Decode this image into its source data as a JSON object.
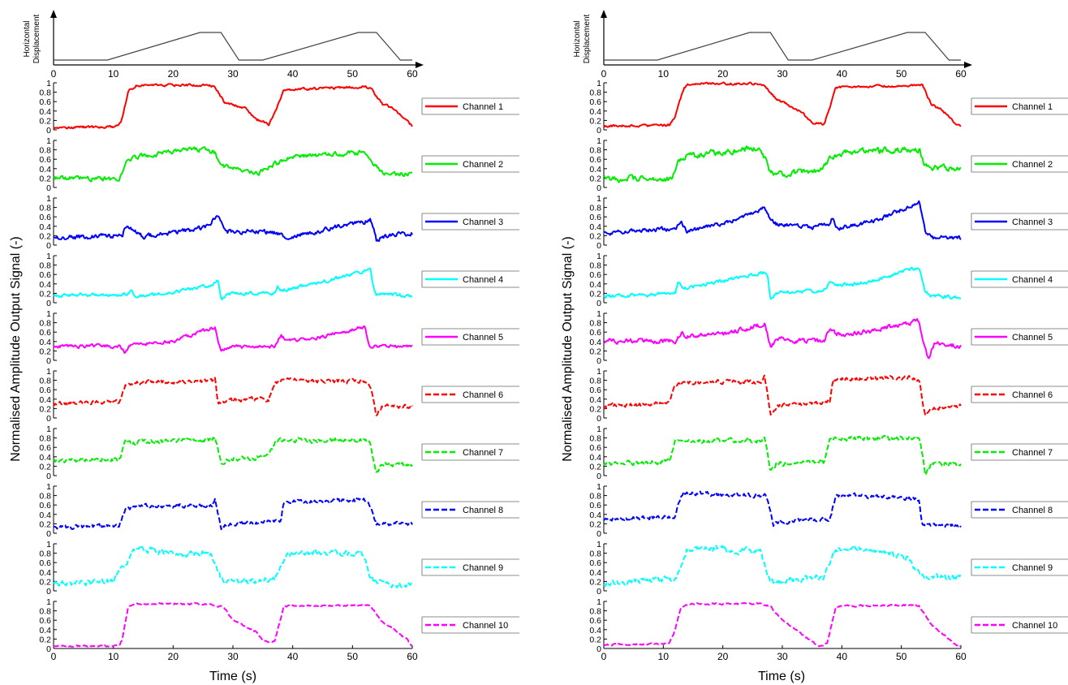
{
  "chart_data": {
    "type": "line",
    "ylabel": "Normalised Amplitude Output Signal (-)",
    "xlabel": "Time (s)",
    "xlim": [
      0,
      60
    ],
    "ylim": [
      0,
      1
    ],
    "xticks": [
      "0",
      "10",
      "20",
      "30",
      "40",
      "50",
      "60"
    ],
    "yticks": [
      "0",
      "0.2",
      "0.4",
      "0.6",
      "0.8",
      "1"
    ],
    "displacement": {
      "ylabel_line1": "Horizontal",
      "ylabel_line2": "Displacement",
      "t": [
        0,
        9,
        24.5,
        28,
        31,
        35,
        51,
        54,
        58,
        60
      ],
      "y": [
        0,
        0,
        1,
        1,
        0,
        0,
        1,
        1,
        0,
        0
      ]
    },
    "panels": [
      {
        "series": [
          {
            "name": "Channel 1",
            "color": "#ff0000",
            "dash": "solid",
            "noise": 0.02,
            "t": [
              0,
              10,
              11.3,
              12.5,
              14,
              25,
              27,
              28.5,
              32,
              34,
              36,
              37,
              38.5,
              52,
              53,
              55,
              57,
              59,
              60
            ],
            "y": [
              0.05,
              0.06,
              0.15,
              0.82,
              0.95,
              0.95,
              0.92,
              0.6,
              0.45,
              0.22,
              0.12,
              0.35,
              0.85,
              0.92,
              0.9,
              0.55,
              0.45,
              0.2,
              0.08
            ]
          },
          {
            "name": "Channel 2",
            "color": "#00ee00",
            "dash": "solid",
            "noise": 0.04,
            "t": [
              0,
              11,
              12,
              14,
              20,
              24,
              27,
              28,
              32,
              34,
              37,
              40,
              46,
              50,
              52,
              53,
              55,
              60
            ],
            "y": [
              0.2,
              0.18,
              0.55,
              0.65,
              0.75,
              0.82,
              0.75,
              0.45,
              0.35,
              0.3,
              0.5,
              0.65,
              0.7,
              0.72,
              0.75,
              0.6,
              0.3,
              0.3
            ]
          },
          {
            "name": "Channel 3",
            "color": "#0000ff",
            "dash": "solid",
            "noise": 0.04,
            "t": [
              0,
              10,
              11.5,
              12,
              15,
              25,
              27.5,
              29,
              35,
              38,
              38.5,
              40,
              52,
              53,
              54,
              55,
              60
            ],
            "y": [
              0.15,
              0.2,
              0.22,
              0.4,
              0.18,
              0.35,
              0.6,
              0.3,
              0.28,
              0.25,
              0.15,
              0.2,
              0.5,
              0.58,
              0.1,
              0.2,
              0.25
            ]
          },
          {
            "name": "Channel 4",
            "color": "#00ffff",
            "dash": "solid",
            "noise": 0.03,
            "t": [
              0,
              12,
              13,
              14,
              26,
              27.5,
              28,
              29,
              37,
              37.5,
              38,
              45,
              53,
              53.5,
              54,
              60
            ],
            "y": [
              0.15,
              0.18,
              0.25,
              0.12,
              0.35,
              0.5,
              0.05,
              0.2,
              0.2,
              0.35,
              0.25,
              0.45,
              0.7,
              0.3,
              0.18,
              0.15
            ]
          },
          {
            "name": "Channel 5",
            "color": "#ff00ff",
            "dash": "solid",
            "noise": 0.03,
            "t": [
              0,
              11,
              12,
              13,
              20,
              27,
              28,
              29,
              37,
              38,
              39,
              45,
              52,
              53,
              54,
              60
            ],
            "y": [
              0.3,
              0.3,
              0.15,
              0.35,
              0.4,
              0.7,
              0.2,
              0.28,
              0.3,
              0.55,
              0.4,
              0.5,
              0.72,
              0.25,
              0.3,
              0.3
            ]
          }
        ]
      },
      {
        "series": [
          {
            "name": "Channel 6",
            "color": "#ff0000",
            "dash": "dashed",
            "noise": 0.035,
            "t": [
              0,
              11,
              12,
              14,
              26.5,
              27,
              27.5,
              28.5,
              32,
              36,
              37,
              38,
              52,
              53,
              54,
              55,
              60
            ],
            "y": [
              0.3,
              0.35,
              0.68,
              0.75,
              0.78,
              0.85,
              0.3,
              0.35,
              0.4,
              0.4,
              0.75,
              0.8,
              0.78,
              0.7,
              0.05,
              0.25,
              0.25
            ]
          },
          {
            "name": "Channel 7",
            "color": "#00ee00",
            "dash": "dashed",
            "noise": 0.04,
            "t": [
              0,
              11,
              12,
              14,
              26.5,
              27,
              28,
              29,
              36,
              37,
              38,
              52,
              53,
              54,
              55,
              60
            ],
            "y": [
              0.3,
              0.35,
              0.7,
              0.72,
              0.75,
              0.85,
              0.25,
              0.35,
              0.4,
              0.7,
              0.75,
              0.75,
              0.7,
              0.05,
              0.25,
              0.22
            ]
          },
          {
            "name": "Channel 8",
            "color": "#0000ff",
            "dash": "dashed",
            "noise": 0.035,
            "t": [
              0,
              11,
              12,
              14,
              26.5,
              27,
              28,
              29,
              38,
              38.5,
              40,
              52,
              53,
              54,
              60
            ],
            "y": [
              0.12,
              0.15,
              0.5,
              0.58,
              0.6,
              0.7,
              0.1,
              0.2,
              0.25,
              0.68,
              0.68,
              0.7,
              0.55,
              0.2,
              0.2
            ]
          },
          {
            "name": "Channel 9",
            "color": "#00ffff",
            "dash": "dashed",
            "noise": 0.05,
            "t": [
              0,
              10,
              11,
              12,
              13,
              14,
              20,
              26.5,
              27,
              28,
              30,
              37,
              38,
              39,
              50,
              52,
              53,
              55,
              60
            ],
            "y": [
              0.15,
              0.2,
              0.4,
              0.5,
              0.82,
              0.9,
              0.8,
              0.8,
              0.55,
              0.25,
              0.2,
              0.25,
              0.55,
              0.8,
              0.82,
              0.75,
              0.3,
              0.15,
              0.12
            ]
          },
          {
            "name": "Channel 10",
            "color": "#ff00ff",
            "dash": "dashed",
            "noise": 0.015,
            "t": [
              0,
              11,
              11.5,
              12.5,
              14,
              26,
              28.5,
              30,
              34,
              35,
              37,
              38.5,
              52,
              53,
              55,
              57,
              59,
              60
            ],
            "y": [
              0.05,
              0.05,
              0.2,
              0.9,
              0.95,
              0.95,
              0.88,
              0.6,
              0.35,
              0.15,
              0.15,
              0.9,
              0.92,
              0.9,
              0.55,
              0.4,
              0.2,
              0.05
            ]
          }
        ]
      },
      {
        "series": [
          {
            "name": "Channel 1",
            "color": "#ff0000",
            "dash": "solid",
            "noise": 0.02,
            "t": [
              0,
              11,
              12,
              13.5,
              14.5,
              26,
              27,
              29,
              33,
              35,
              37,
              38,
              39,
              53,
              53.5,
              55,
              57,
              59,
              60
            ],
            "y": [
              0.08,
              0.1,
              0.3,
              0.9,
              0.98,
              0.98,
              0.95,
              0.65,
              0.4,
              0.15,
              0.12,
              0.5,
              0.9,
              0.95,
              0.95,
              0.55,
              0.4,
              0.15,
              0.08
            ]
          },
          {
            "name": "Channel 2",
            "color": "#00ee00",
            "dash": "solid",
            "noise": 0.05,
            "t": [
              0,
              11.5,
              12.5,
              14,
              20,
              26,
              27,
              28,
              32,
              36,
              38,
              40,
              50,
              53,
              54,
              56,
              60
            ],
            "y": [
              0.18,
              0.18,
              0.55,
              0.65,
              0.75,
              0.85,
              0.65,
              0.3,
              0.3,
              0.35,
              0.62,
              0.75,
              0.8,
              0.82,
              0.45,
              0.4,
              0.4
            ]
          },
          {
            "name": "Channel 3",
            "color": "#0000ff",
            "dash": "solid",
            "noise": 0.035,
            "t": [
              0,
              12,
              13,
              14,
              20,
              27,
              28,
              29,
              35,
              38,
              38.5,
              39,
              45,
              53,
              54,
              55,
              60
            ],
            "y": [
              0.25,
              0.35,
              0.48,
              0.3,
              0.45,
              0.8,
              0.55,
              0.45,
              0.38,
              0.45,
              0.6,
              0.35,
              0.5,
              0.9,
              0.3,
              0.15,
              0.15
            ]
          },
          {
            "name": "Channel 4",
            "color": "#00ffff",
            "dash": "solid",
            "noise": 0.03,
            "t": [
              0,
              12,
              12.5,
              13.5,
              27,
              27.5,
              28,
              29,
              37,
              38,
              39,
              45,
              53,
              54,
              55,
              60
            ],
            "y": [
              0.12,
              0.2,
              0.45,
              0.3,
              0.65,
              0.6,
              0.1,
              0.2,
              0.25,
              0.45,
              0.35,
              0.45,
              0.75,
              0.25,
              0.15,
              0.1
            ]
          },
          {
            "name": "Channel 5",
            "color": "#ff00ff",
            "dash": "solid",
            "noise": 0.04,
            "t": [
              0,
              12,
              13,
              14,
              20,
              27,
              28,
              29,
              37,
              38,
              39,
              45,
              53,
              53.5,
              54.5,
              55.5,
              60
            ],
            "y": [
              0.42,
              0.4,
              0.6,
              0.5,
              0.55,
              0.78,
              0.3,
              0.45,
              0.4,
              0.7,
              0.55,
              0.62,
              0.85,
              0.5,
              0.05,
              0.35,
              0.3
            ]
          }
        ]
      },
      {
        "series": [
          {
            "name": "Channel 6",
            "color": "#ff0000",
            "dash": "dashed",
            "noise": 0.035,
            "t": [
              0,
              11,
              12,
              14,
              26.5,
              27,
              28,
              29,
              38,
              38.5,
              39,
              52,
              53,
              54,
              55,
              60
            ],
            "y": [
              0.25,
              0.32,
              0.7,
              0.75,
              0.78,
              0.9,
              0.1,
              0.25,
              0.35,
              0.8,
              0.82,
              0.85,
              0.8,
              0.05,
              0.2,
              0.25
            ]
          },
          {
            "name": "Channel 7",
            "color": "#00ee00",
            "dash": "dashed",
            "noise": 0.04,
            "t": [
              0,
              11,
              12,
              14,
              26.5,
              27,
              28,
              29,
              37,
              38,
              39,
              52,
              53,
              54,
              55,
              60
            ],
            "y": [
              0.25,
              0.3,
              0.7,
              0.72,
              0.75,
              0.85,
              0.1,
              0.25,
              0.3,
              0.75,
              0.78,
              0.8,
              0.8,
              0.05,
              0.25,
              0.25
            ]
          },
          {
            "name": "Channel 8",
            "color": "#0000ff",
            "dash": "dashed",
            "noise": 0.035,
            "t": [
              0,
              12,
              13,
              14,
              27,
              27.5,
              28.5,
              29.5,
              38,
              39,
              40,
              52,
              53,
              53.5,
              54.5,
              60
            ],
            "y": [
              0.3,
              0.35,
              0.82,
              0.85,
              0.8,
              0.7,
              0.2,
              0.25,
              0.3,
              0.8,
              0.8,
              0.75,
              0.7,
              0.15,
              0.18,
              0.15
            ]
          },
          {
            "name": "Channel 9",
            "color": "#00ffff",
            "dash": "dashed",
            "noise": 0.05,
            "t": [
              0,
              12,
              13,
              14,
              20,
              26.5,
              27,
              28,
              30,
              37,
              38,
              39,
              45,
              51,
              53,
              55,
              60
            ],
            "y": [
              0.15,
              0.25,
              0.55,
              0.85,
              0.9,
              0.8,
              0.55,
              0.2,
              0.2,
              0.3,
              0.55,
              0.9,
              0.88,
              0.7,
              0.35,
              0.3,
              0.28
            ]
          },
          {
            "name": "Channel 10",
            "color": "#ff00ff",
            "dash": "dashed",
            "noise": 0.015,
            "t": [
              0,
              11,
              12,
              13,
              14.5,
              26,
              28,
              30,
              35,
              36,
              37.5,
              39,
              52,
              53,
              55,
              57,
              59,
              60
            ],
            "y": [
              0.08,
              0.1,
              0.4,
              0.9,
              0.95,
              0.95,
              0.9,
              0.6,
              0.15,
              0.05,
              0.1,
              0.9,
              0.92,
              0.9,
              0.5,
              0.3,
              0.1,
              0.05
            ]
          }
        ]
      }
    ]
  }
}
